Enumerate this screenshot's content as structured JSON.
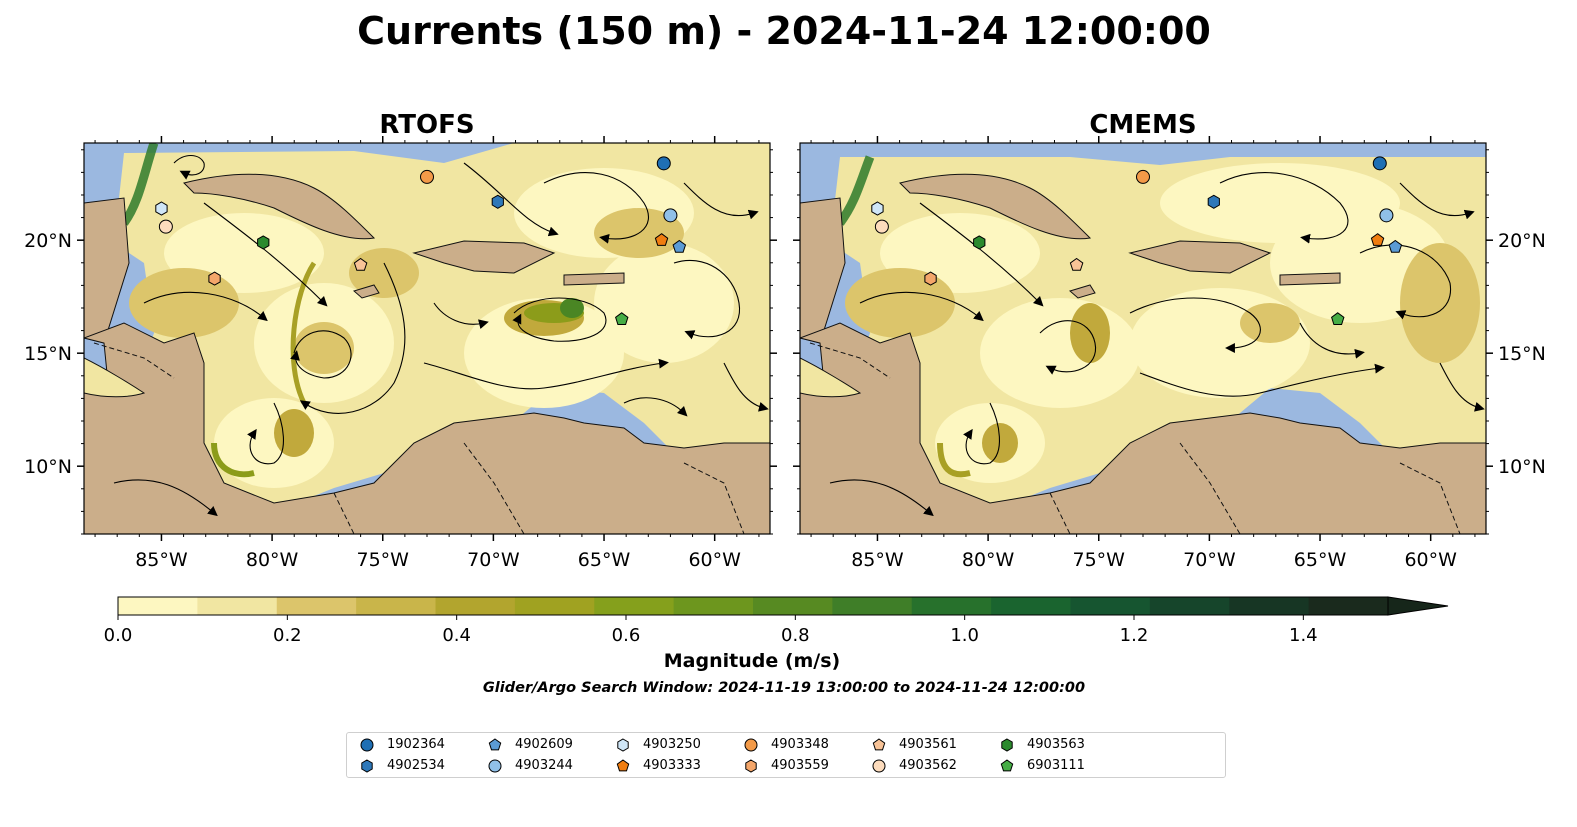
{
  "title": "Currents (150 m) - 2024-11-24 12:00:00",
  "panels": [
    {
      "id": "rtofs",
      "title": "RTOFS"
    },
    {
      "id": "cmems",
      "title": "CMEMS"
    }
  ],
  "map": {
    "lon_range": [
      -88.5,
      -57.5
    ],
    "lat_range": [
      7.0,
      24.3
    ],
    "lon_ticks": [
      {
        "value": -85,
        "label": "85°W"
      },
      {
        "value": -80,
        "label": "80°W"
      },
      {
        "value": -75,
        "label": "75°W"
      },
      {
        "value": -70,
        "label": "70°W"
      },
      {
        "value": -65,
        "label": "65°W"
      },
      {
        "value": -60,
        "label": "60°W"
      }
    ],
    "lat_ticks": [
      {
        "value": 20,
        "label": "20°N"
      },
      {
        "value": 15,
        "label": "15°N"
      },
      {
        "value": 10,
        "label": "10°N"
      }
    ],
    "colors": {
      "ocean": "#9bb8e0",
      "land": "#cbae8a",
      "coast": "#000000",
      "border": "#222222"
    },
    "magnitude_palette": [
      "#fdf7c1",
      "#f1e6a2",
      "#dcc56b",
      "#c1a93c",
      "#a8a025",
      "#8c9c1a",
      "#6f9420",
      "#4a8624",
      "#2f7a2c",
      "#1b6a32"
    ]
  },
  "colorbar": {
    "label": "Magnitude (m/s)",
    "min": 0.0,
    "max": 1.5,
    "extend": "max",
    "ticks": [
      {
        "value": 0.0,
        "label": "0.0"
      },
      {
        "value": 0.2,
        "label": "0.2"
      },
      {
        "value": 0.4,
        "label": "0.4"
      },
      {
        "value": 0.6,
        "label": "0.6"
      },
      {
        "value": 0.8,
        "label": "0.8"
      },
      {
        "value": 1.0,
        "label": "1.0"
      },
      {
        "value": 1.2,
        "label": "1.2"
      },
      {
        "value": 1.4,
        "label": "1.4"
      }
    ],
    "colors": [
      "#fdf7c1",
      "#f1e6a2",
      "#dcc56b",
      "#c9b54a",
      "#b2a52e",
      "#a0a221",
      "#85a01c",
      "#6d961e",
      "#578a22",
      "#3f7e28",
      "#27712c",
      "#1a642f",
      "#165530",
      "#16452b",
      "#173624",
      "#1a2a1d"
    ]
  },
  "subtitle": "Glider/Argo Search Window: 2024-11-19 13:00:00 to 2024-11-24 12:00:00",
  "floats": [
    {
      "id": "1902364",
      "shape": "circle",
      "color": "#1f6fb4",
      "lon": -62.3,
      "lat": 23.4
    },
    {
      "id": "4902534",
      "shape": "hexagon",
      "color": "#2e78b9",
      "lon": -69.8,
      "lat": 21.7
    },
    {
      "id": "4902609",
      "shape": "pentagon",
      "color": "#5b9bd5",
      "lon": -61.6,
      "lat": 19.7
    },
    {
      "id": "4903244",
      "shape": "circle",
      "color": "#90c0e8",
      "lon": -62.0,
      "lat": 21.1
    },
    {
      "id": "4903250",
      "shape": "hexagon",
      "color": "#cfe6f7",
      "lon": -85.0,
      "lat": 21.4
    },
    {
      "id": "4903333",
      "shape": "pentagon",
      "color": "#f07d10",
      "lon": -62.4,
      "lat": 20.0
    },
    {
      "id": "4903348",
      "shape": "circle",
      "color": "#f39a48",
      "lon": -73.0,
      "lat": 22.8
    },
    {
      "id": "4903559",
      "shape": "hexagon",
      "color": "#f4a66a",
      "lon": -82.6,
      "lat": 18.3
    },
    {
      "id": "4903561",
      "shape": "pentagon",
      "color": "#f8c397",
      "lon": -76.0,
      "lat": 18.9
    },
    {
      "id": "4903562",
      "shape": "circle",
      "color": "#fddcbd",
      "lon": -84.8,
      "lat": 20.6
    },
    {
      "id": "4903563",
      "shape": "hexagon",
      "color": "#2b8a2e",
      "lon": -80.4,
      "lat": 19.9
    },
    {
      "id": "6903111",
      "shape": "pentagon",
      "color": "#46ad46",
      "lon": -64.2,
      "lat": 16.5
    }
  ]
}
